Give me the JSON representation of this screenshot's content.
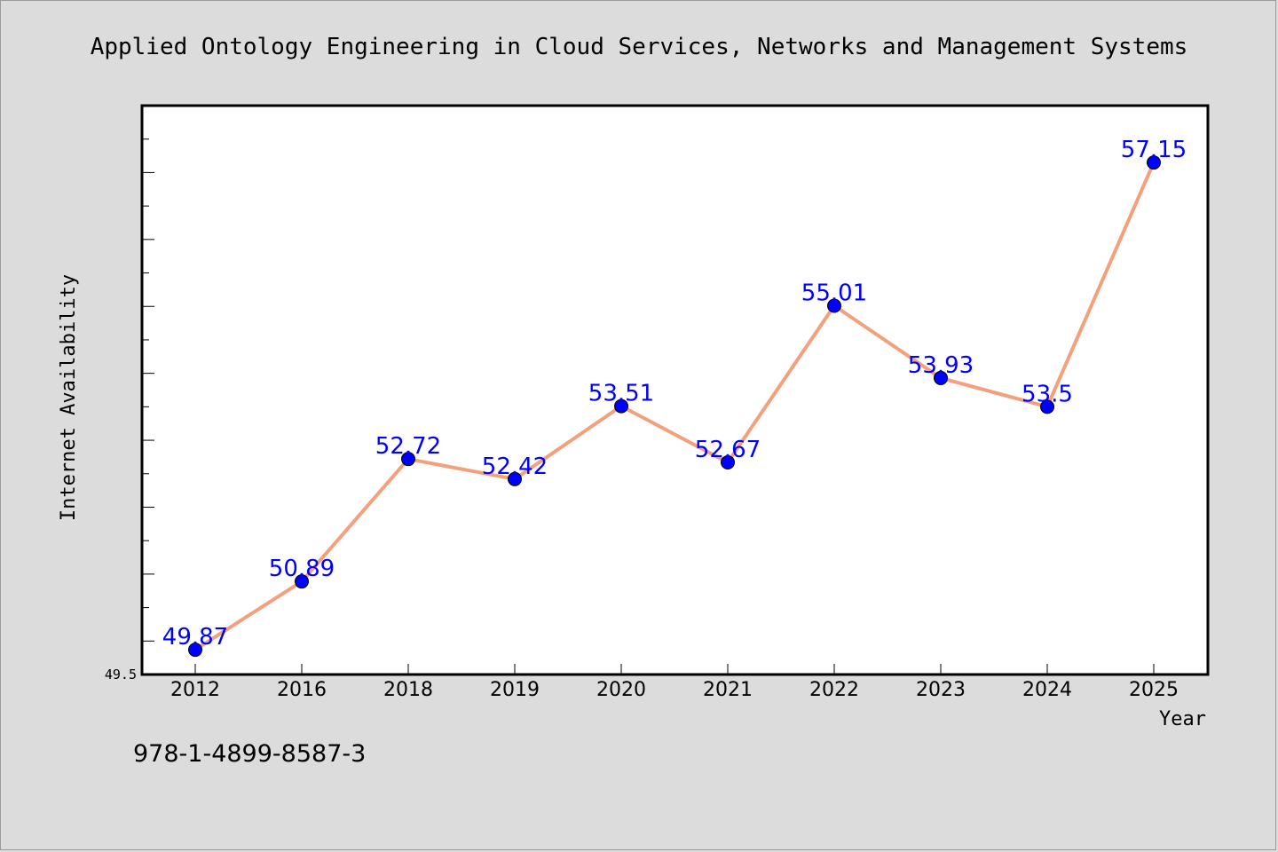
{
  "chart_data": {
    "type": "line",
    "title": "Applied Ontology Engineering in Cloud Services, Networks and Management Systems",
    "xlabel": "Year",
    "ylabel": "Internet Availability",
    "categories": [
      "2012",
      "2016",
      "2018",
      "2019",
      "2020",
      "2021",
      "2022",
      "2023",
      "2024",
      "2025"
    ],
    "values": [
      49.87,
      50.89,
      52.72,
      52.42,
      53.51,
      52.67,
      55.01,
      53.93,
      53.5,
      57.15
    ],
    "data_labels": [
      "49.87",
      "50.89",
      "52.72",
      "52.42",
      "53.51",
      "52.67",
      "55.01",
      "53.93",
      "53.5",
      "57.15"
    ],
    "ylim": [
      49.5,
      58.0
    ],
    "ytick_labels": [
      "49.5"
    ],
    "line_color": "#f4a07c",
    "marker_color": "#0000ff",
    "label_color": "#0000ff",
    "grid": false,
    "legend": "none"
  },
  "footer": {
    "isbn": "978-1-4899-8587-3"
  }
}
